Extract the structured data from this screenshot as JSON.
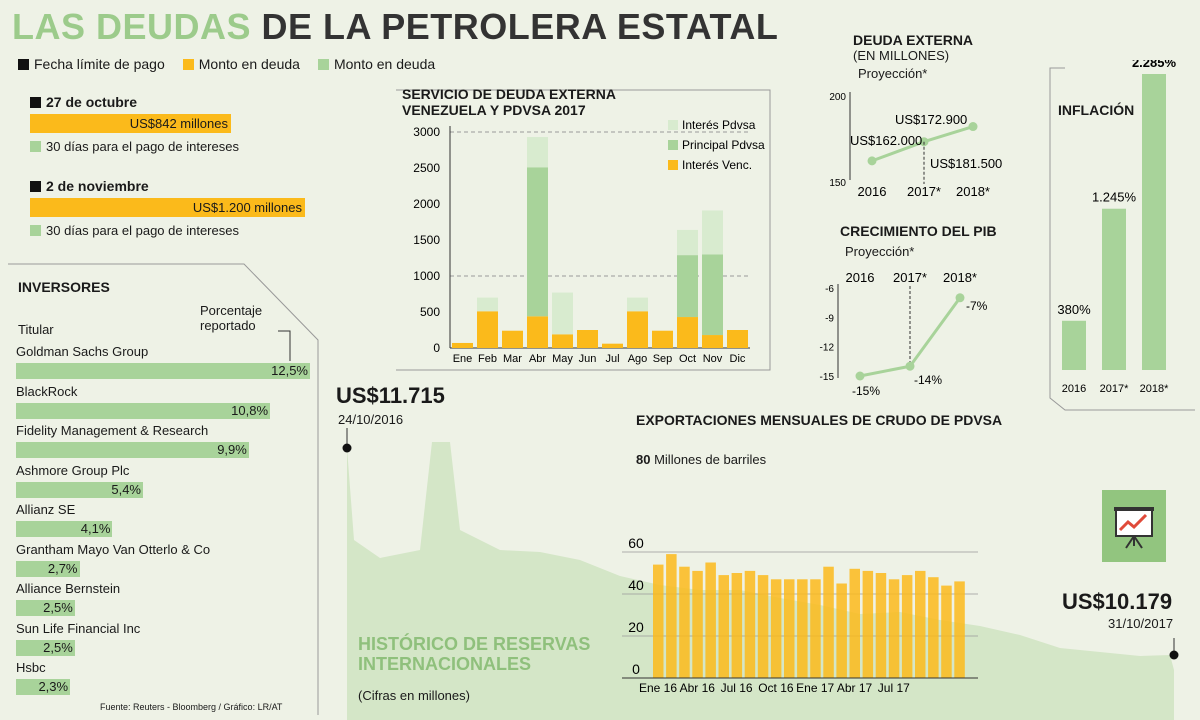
{
  "title": {
    "highlight": "LAS DEUDAS",
    "rest": "DE LA PETROLERA ESTATAL"
  },
  "legend": [
    {
      "label": "Fecha límite de pago",
      "color": "#111111"
    },
    {
      "label": "Monto en deuda",
      "color": "#fbba1b"
    },
    {
      "label": "Monto en deuda",
      "color": "#a8d39a"
    }
  ],
  "payments": [
    {
      "date": "27 de octubre",
      "amount": "US$842 millones",
      "note": "30 días para el pago de intereses"
    },
    {
      "date": "2 de noviembre",
      "amount": "US$1.200 millones",
      "note": "30 días para el pago de intereses"
    }
  ],
  "investors": {
    "title": "INVERSORES",
    "col_holder": "Titular",
    "col_pct": "Porcentaje reportado",
    "source": "Fuente: Reuters - Bloomberg / Gráfico: LR/AT"
  },
  "reserves": {
    "title_line1": "HISTÓRICO DE RESERVAS",
    "title_line2": "INTERNACIONALES",
    "subtitle": "(Cifras en millones)",
    "start_value": "US$11.715",
    "start_date": "24/10/2016",
    "end_value": "US$10.179",
    "end_date": "31/10/2017"
  },
  "inflation_icon": "presentation-chart-icon",
  "chart_data": [
    {
      "id": "investors",
      "type": "bar",
      "orientation": "horizontal",
      "categories": [
        "Goldman Sachs Group",
        "BlackRock",
        "Fidelity Management & Research",
        "Ashmore Group Plc",
        "Allianz SE",
        "Grantham Mayo Van Otterlo & Co",
        "Alliance Bernstein",
        "Sun Life Financial Inc",
        "Hsbc"
      ],
      "values": [
        12.5,
        10.8,
        9.9,
        5.4,
        4.1,
        2.7,
        2.5,
        2.5,
        2.3
      ],
      "labels": [
        "12,5%",
        "10,8%",
        "9,9%",
        "5,4%",
        "4,1%",
        "2,7%",
        "2,5%",
        "2,5%",
        "2,3%"
      ],
      "color": "#a8d39a"
    },
    {
      "id": "debt_service",
      "type": "bar",
      "stacked": true,
      "title_line1": "SERVICIO DE DEUDA EXTERNA",
      "title_line2": "VENEZUELA Y PDVSA 2017",
      "categories": [
        "Ene",
        "Feb",
        "Mar",
        "Abr",
        "May",
        "Jun",
        "Jul",
        "Ago",
        "Sep",
        "Oct",
        "Nov",
        "Dic"
      ],
      "yticks": [
        "0",
        "500",
        "1000",
        "1500",
        "2000",
        "2500",
        "3000"
      ],
      "ylim": [
        0,
        3000
      ],
      "series": [
        {
          "name": "Interés Venc.",
          "color": "#fbba1b",
          "values": [
            70,
            510,
            240,
            440,
            190,
            250,
            60,
            510,
            240,
            430,
            180,
            250
          ]
        },
        {
          "name": "Principal Pdvsa",
          "color": "#a8d39a",
          "values": [
            0,
            0,
            0,
            2070,
            0,
            0,
            0,
            0,
            0,
            860,
            1120,
            0
          ]
        },
        {
          "name": "Interés Pdvsa",
          "color": "#d8ebcf",
          "values": [
            0,
            190,
            0,
            420,
            580,
            0,
            0,
            190,
            0,
            350,
            610,
            0
          ]
        }
      ]
    },
    {
      "id": "external_debt",
      "type": "line",
      "title": "DEUDA EXTERNA",
      "subtitle": "(EN MILLONES)",
      "note": "Proyección*",
      "categories": [
        "2016",
        "2017*",
        "2018*"
      ],
      "values": [
        162000,
        172900,
        181500
      ],
      "labels": [
        "US$162.000",
        "US$172.900",
        "US$181.500"
      ],
      "yticks": [
        "200",
        "150"
      ]
    },
    {
      "id": "gdp",
      "type": "line",
      "title": "CRECIMIENTO DEL PIB",
      "note": "Proyección*",
      "categories": [
        "2016",
        "2017*",
        "2018*"
      ],
      "values": [
        -15,
        -14,
        -7
      ],
      "labels": [
        "-15%",
        "-14%",
        "-7%"
      ],
      "yticks": [
        "-6",
        "-9",
        "-12",
        "-15"
      ],
      "ylim": [
        -15,
        -6
      ]
    },
    {
      "id": "inflation",
      "type": "bar",
      "title": "INFLACIÓN",
      "categories": [
        "2016",
        "2017*",
        "2018*"
      ],
      "values": [
        380,
        1245,
        2285
      ],
      "labels": [
        "380%",
        "1.245%",
        "2.285%"
      ],
      "color": "#a8d39a"
    },
    {
      "id": "exports",
      "type": "bar",
      "title": "EXPORTACIONES MENSUALES DE CRUDO DE PDVSA",
      "unit_value": "80",
      "unit_label": "Millones de barriles",
      "xticks": [
        "Ene 16",
        "Abr 16",
        "Jul 16",
        "Oct 16",
        "Ene 17",
        "Abr 17",
        "Jul 17"
      ],
      "yticks": [
        "0",
        "20",
        "40",
        "60"
      ],
      "ylim": [
        0,
        80
      ],
      "values": [
        54,
        59,
        53,
        51,
        55,
        49,
        50,
        51,
        49,
        47,
        47,
        47,
        47,
        53,
        45,
        52,
        51,
        50,
        47,
        49,
        51,
        48,
        44,
        46
      ],
      "color": "#fbba1b"
    }
  ]
}
